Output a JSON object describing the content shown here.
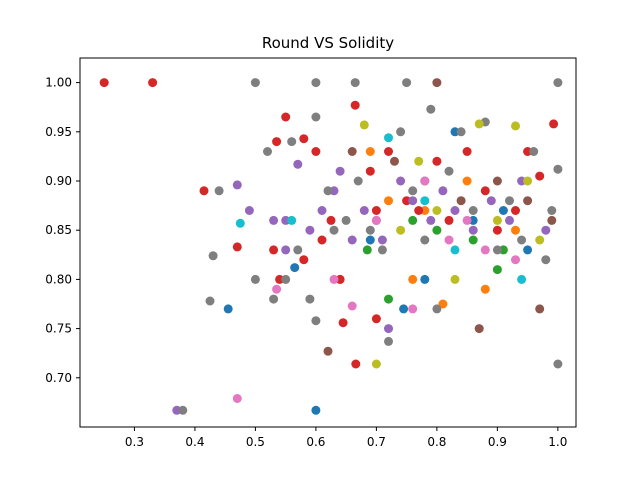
{
  "chart_data": {
    "type": "scatter",
    "title": "Round VS Solidity",
    "xlabel": "",
    "ylabel": "",
    "xlim": [
      0.21,
      1.03
    ],
    "ylim": [
      0.65,
      1.025
    ],
    "xticks": [
      0.3,
      0.4,
      0.5,
      0.6,
      0.7,
      0.8,
      0.9,
      1.0
    ],
    "xtick_labels": [
      "0.3",
      "0.4",
      "0.5",
      "0.6",
      "0.7",
      "0.8",
      "0.9",
      "1.0"
    ],
    "yticks": [
      0.7,
      0.75,
      0.8,
      0.85,
      0.9,
      0.95,
      1.0
    ],
    "ytick_labels": [
      "0.70",
      "0.75",
      "0.80",
      "0.85",
      "0.90",
      "0.95",
      "1.00"
    ],
    "grid": false,
    "legend": "none",
    "colors": [
      "#1f77b4",
      "#ff7f0e",
      "#2ca02c",
      "#d62728",
      "#9467bd",
      "#8c564b",
      "#e377c2",
      "#7f7f7f",
      "#bcbd22",
      "#17becf"
    ],
    "series": [
      {
        "color": "#1f77b4",
        "points": [
          [
            0.455,
            0.77
          ],
          [
            0.6,
            0.667
          ],
          [
            0.565,
            0.812
          ],
          [
            0.745,
            0.77
          ],
          [
            0.78,
            0.8
          ],
          [
            0.83,
            0.95
          ],
          [
            0.86,
            0.86
          ],
          [
            0.69,
            0.84
          ],
          [
            0.91,
            0.87
          ],
          [
            0.95,
            0.83
          ]
        ]
      },
      {
        "color": "#ff7f0e",
        "points": [
          [
            0.76,
            0.8
          ],
          [
            0.81,
            0.775
          ],
          [
            0.88,
            0.79
          ],
          [
            0.69,
            0.93
          ],
          [
            0.85,
            0.9
          ],
          [
            0.78,
            0.87
          ],
          [
            0.93,
            0.85
          ],
          [
            0.64,
            0.8
          ],
          [
            0.72,
            0.88
          ]
        ]
      },
      {
        "color": "#2ca02c",
        "points": [
          [
            0.685,
            0.83
          ],
          [
            0.9,
            0.81
          ],
          [
            0.72,
            0.78
          ],
          [
            0.8,
            0.85
          ],
          [
            0.86,
            0.84
          ],
          [
            0.91,
            0.83
          ],
          [
            0.76,
            0.86
          ]
        ]
      },
      {
        "color": "#d62728",
        "points": [
          [
            0.25,
            1.0
          ],
          [
            0.33,
            1.0
          ],
          [
            0.415,
            0.89
          ],
          [
            0.47,
            0.833
          ],
          [
            0.53,
            0.83
          ],
          [
            0.535,
            0.94
          ],
          [
            0.54,
            0.8
          ],
          [
            0.55,
            0.965
          ],
          [
            0.58,
            0.943
          ],
          [
            0.6,
            0.93
          ],
          [
            0.625,
            0.86
          ],
          [
            0.64,
            0.8
          ],
          [
            0.645,
            0.756
          ],
          [
            0.665,
            0.977
          ],
          [
            0.666,
            0.714
          ],
          [
            0.69,
            0.91
          ],
          [
            0.7,
            0.87
          ],
          [
            0.72,
            0.93
          ],
          [
            0.75,
            0.88
          ],
          [
            0.77,
            0.87
          ],
          [
            0.8,
            0.92
          ],
          [
            0.82,
            0.86
          ],
          [
            0.85,
            0.93
          ],
          [
            0.88,
            0.89
          ],
          [
            0.9,
            0.85
          ],
          [
            0.93,
            0.87
          ],
          [
            0.95,
            0.93
          ],
          [
            0.97,
            0.905
          ],
          [
            0.993,
            0.958
          ],
          [
            0.61,
            0.84
          ],
          [
            0.58,
            0.82
          ],
          [
            0.7,
            0.76
          ]
        ]
      },
      {
        "color": "#9467bd",
        "points": [
          [
            0.37,
            0.667
          ],
          [
            0.47,
            0.896
          ],
          [
            0.49,
            0.87
          ],
          [
            0.53,
            0.86
          ],
          [
            0.55,
            0.83
          ],
          [
            0.57,
            0.917
          ],
          [
            0.59,
            0.85
          ],
          [
            0.61,
            0.87
          ],
          [
            0.63,
            0.89
          ],
          [
            0.66,
            0.84
          ],
          [
            0.68,
            0.87
          ],
          [
            0.7,
            0.86
          ],
          [
            0.72,
            0.75
          ],
          [
            0.74,
            0.9
          ],
          [
            0.76,
            0.88
          ],
          [
            0.79,
            0.86
          ],
          [
            0.81,
            0.89
          ],
          [
            0.83,
            0.87
          ],
          [
            0.86,
            0.85
          ],
          [
            0.89,
            0.88
          ],
          [
            0.92,
            0.86
          ],
          [
            0.94,
            0.9
          ],
          [
            0.98,
            0.85
          ],
          [
            0.55,
            0.86
          ],
          [
            0.64,
            0.91
          ],
          [
            0.71,
            0.84
          ]
        ]
      },
      {
        "color": "#8c564b",
        "points": [
          [
            0.8,
            1.0
          ],
          [
            0.87,
            0.75
          ],
          [
            0.97,
            0.77
          ],
          [
            0.62,
            0.727
          ],
          [
            0.66,
            0.93
          ],
          [
            0.73,
            0.92
          ],
          [
            0.78,
            0.9
          ],
          [
            0.84,
            0.88
          ],
          [
            0.9,
            0.9
          ],
          [
            0.95,
            0.88
          ],
          [
            0.99,
            0.86
          ]
        ]
      },
      {
        "color": "#e377c2",
        "points": [
          [
            0.47,
            0.679
          ],
          [
            0.535,
            0.79
          ],
          [
            0.63,
            0.8
          ],
          [
            0.66,
            0.773
          ],
          [
            0.76,
            0.77
          ],
          [
            0.78,
            0.9
          ],
          [
            0.82,
            0.84
          ],
          [
            0.85,
            0.86
          ],
          [
            0.88,
            0.83
          ],
          [
            0.93,
            0.82
          ],
          [
            0.7,
            0.86
          ]
        ]
      },
      {
        "color": "#7f7f7f",
        "points": [
          [
            0.38,
            0.667
          ],
          [
            0.43,
            0.824
          ],
          [
            0.425,
            0.778
          ],
          [
            0.5,
            1.0
          ],
          [
            0.6,
            1.0
          ],
          [
            0.665,
            1.0
          ],
          [
            0.75,
            1.0
          ],
          [
            1.0,
            1.0
          ],
          [
            1.0,
            0.714
          ],
          [
            0.5,
            0.8
          ],
          [
            0.52,
            0.93
          ],
          [
            0.53,
            0.78
          ],
          [
            0.55,
            0.8
          ],
          [
            0.57,
            0.83
          ],
          [
            0.59,
            0.78
          ],
          [
            0.6,
            0.758
          ],
          [
            0.6,
            0.965
          ],
          [
            0.62,
            0.89
          ],
          [
            0.65,
            0.86
          ],
          [
            0.67,
            0.9
          ],
          [
            0.69,
            0.85
          ],
          [
            0.71,
            0.83
          ],
          [
            0.72,
            0.737
          ],
          [
            0.74,
            0.95
          ],
          [
            0.76,
            0.89
          ],
          [
            0.78,
            0.84
          ],
          [
            0.79,
            0.973
          ],
          [
            0.8,
            0.77
          ],
          [
            0.82,
            0.91
          ],
          [
            0.84,
            0.95
          ],
          [
            0.86,
            0.87
          ],
          [
            0.88,
            0.96
          ],
          [
            0.9,
            0.83
          ],
          [
            0.92,
            0.88
          ],
          [
            0.94,
            0.84
          ],
          [
            0.96,
            0.93
          ],
          [
            0.98,
            0.82
          ],
          [
            0.99,
            0.87
          ],
          [
            1.0,
            0.912
          ],
          [
            0.44,
            0.89
          ],
          [
            0.56,
            0.94
          ],
          [
            0.63,
            0.85
          ]
        ]
      },
      {
        "color": "#bcbd22",
        "points": [
          [
            0.7,
            0.714
          ],
          [
            0.68,
            0.957
          ],
          [
            0.77,
            0.92
          ],
          [
            0.8,
            0.87
          ],
          [
            0.83,
            0.8
          ],
          [
            0.87,
            0.958
          ],
          [
            0.9,
            0.86
          ],
          [
            0.93,
            0.956
          ],
          [
            0.95,
            0.9
          ],
          [
            0.97,
            0.84
          ],
          [
            0.74,
            0.85
          ]
        ]
      },
      {
        "color": "#17becf",
        "points": [
          [
            0.475,
            0.857
          ],
          [
            0.56,
            0.86
          ],
          [
            0.72,
            0.944
          ],
          [
            0.83,
            0.83
          ],
          [
            0.94,
            0.8
          ],
          [
            0.78,
            0.88
          ]
        ]
      }
    ]
  }
}
